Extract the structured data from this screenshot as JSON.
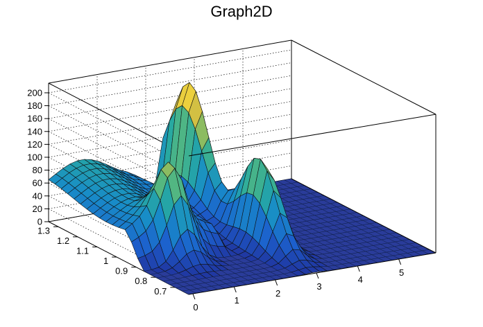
{
  "chart_data": {
    "type": "surface",
    "title": "Graph2D",
    "xlabel": "",
    "ylabel": "",
    "zlabel": "",
    "x_ticks": [
      "0",
      "1",
      "2",
      "3",
      "4",
      "5"
    ],
    "y_ticks": [
      "0.7",
      "0.8",
      "0.9",
      "1",
      "1.1",
      "1.2",
      "1.3"
    ],
    "z_ticks": [
      "0",
      "20",
      "40",
      "60",
      "80",
      "100",
      "120",
      "140",
      "160",
      "180",
      "200"
    ],
    "xlim": [
      -0.1,
      5.9
    ],
    "ylim": [
      0.63,
      1.35
    ],
    "zlim": [
      0,
      215
    ],
    "colormap": "viridis-like (blue to yellow)",
    "grid": true,
    "features": [
      {
        "kind": "plateau",
        "x_range": [
          -0.1,
          2.2
        ],
        "y_range": [
          0.95,
          1.35
        ],
        "z": 60
      },
      {
        "kind": "peak",
        "x": 0.95,
        "y": 0.92,
        "z": 90
      },
      {
        "kind": "peak",
        "x": 2.95,
        "y": 0.9,
        "z": 140
      },
      {
        "kind": "peak",
        "x": 2.85,
        "y": 1.25,
        "z": 205
      },
      {
        "kind": "floor",
        "x_range": [
          2.0,
          5.9
        ],
        "y_range": [
          0.63,
          1.35
        ],
        "z": 0
      }
    ]
  }
}
